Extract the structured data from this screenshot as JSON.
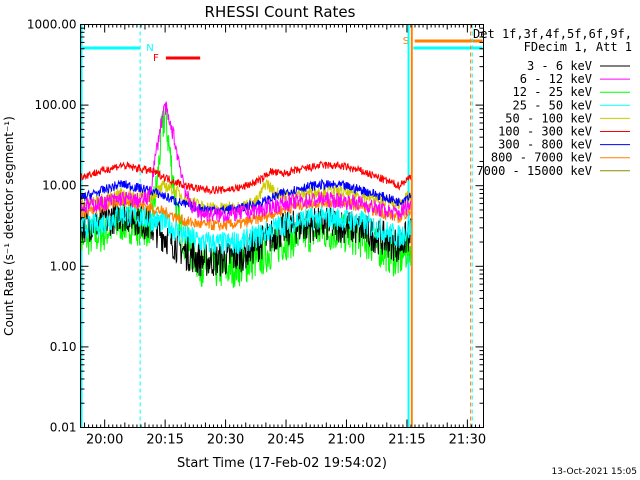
{
  "chart_data": {
    "type": "line",
    "title": "RHESSI Count Rates",
    "xlabel": "Start Time (17-Feb-02 19:54:02)",
    "ylabel": "Count Rate (s⁻¹ detector segment⁻¹)",
    "x_tick_labels": [
      "20:00",
      "20:15",
      "20:30",
      "20:45",
      "21:00",
      "21:15",
      "21:30"
    ],
    "x_tick_minutes": [
      6,
      21,
      36,
      51,
      66,
      81,
      96
    ],
    "x_range_minutes": [
      0,
      100
    ],
    "y_scale": "log",
    "ylim": [
      0.01,
      1000
    ],
    "y_tick_labels": [
      "1000.00",
      "100.00",
      "10.00",
      "1.00",
      "0.10",
      "0.01"
    ],
    "y_tick_values": [
      1000,
      100,
      10,
      1,
      0.1,
      0.01
    ],
    "legend": {
      "header": [
        "Det 1f,3f,4f,5f,6f,9f,",
        "FDecim 1, Att 1"
      ],
      "placement": "right"
    },
    "series": [
      {
        "name": "3 - 6 keV",
        "color": "#000000",
        "points": [
          [
            0,
            3.2
          ],
          [
            5,
            3.5
          ],
          [
            10,
            4.5
          ],
          [
            14,
            4.0
          ],
          [
            18,
            3.0
          ],
          [
            22,
            2.2
          ],
          [
            26,
            1.5
          ],
          [
            30,
            1.2
          ],
          [
            35,
            1.2
          ],
          [
            40,
            1.4
          ],
          [
            45,
            2.0
          ],
          [
            50,
            2.8
          ],
          [
            55,
            3.2
          ],
          [
            60,
            3.3
          ],
          [
            65,
            3.2
          ],
          [
            70,
            2.8
          ],
          [
            75,
            2.2
          ],
          [
            79,
            1.8
          ],
          [
            82,
            2.5
          ]
        ]
      },
      {
        "name": "6 - 12 keV",
        "color": "#ff00ff",
        "points": [
          [
            0,
            5.5
          ],
          [
            5,
            6.0
          ],
          [
            10,
            7.0
          ],
          [
            14,
            6.5
          ],
          [
            17,
            7.0
          ],
          [
            19,
            30
          ],
          [
            20,
            60
          ],
          [
            21,
            100
          ],
          [
            22,
            60
          ],
          [
            23,
            45
          ],
          [
            24,
            25
          ],
          [
            25,
            15
          ],
          [
            26,
            9
          ],
          [
            27,
            6
          ],
          [
            30,
            4.5
          ],
          [
            35,
            4.3
          ],
          [
            40,
            4.6
          ],
          [
            45,
            5.0
          ],
          [
            50,
            6.0
          ],
          [
            55,
            6.5
          ],
          [
            60,
            6.8
          ],
          [
            65,
            6.5
          ],
          [
            70,
            6.0
          ],
          [
            75,
            5.0
          ],
          [
            79,
            4.5
          ],
          [
            82,
            6.0
          ]
        ]
      },
      {
        "name": "12 - 25 keV",
        "color": "#00ff00",
        "points": [
          [
            0,
            2.2
          ],
          [
            5,
            2.5
          ],
          [
            10,
            3.5
          ],
          [
            14,
            3.2
          ],
          [
            17,
            3.0
          ],
          [
            19,
            10
          ],
          [
            20,
            40
          ],
          [
            21,
            80
          ],
          [
            22,
            30
          ],
          [
            23,
            12
          ],
          [
            24,
            4
          ],
          [
            26,
            2
          ],
          [
            30,
            1.0
          ],
          [
            35,
            0.9
          ],
          [
            40,
            1.0
          ],
          [
            45,
            1.3
          ],
          [
            50,
            2.0
          ],
          [
            55,
            2.5
          ],
          [
            60,
            2.7
          ],
          [
            65,
            2.6
          ],
          [
            70,
            2.2
          ],
          [
            75,
            1.6
          ],
          [
            79,
            1.2
          ],
          [
            82,
            1.8
          ]
        ]
      },
      {
        "name": "25 - 50 keV",
        "color": "#00ffff",
        "points": [
          [
            0,
            3.0
          ],
          [
            5,
            3.3
          ],
          [
            10,
            4.5
          ],
          [
            14,
            4.2
          ],
          [
            17,
            3.8
          ],
          [
            21,
            3.5
          ],
          [
            25,
            2.5
          ],
          [
            30,
            2.0
          ],
          [
            35,
            1.9
          ],
          [
            40,
            2.0
          ],
          [
            45,
            2.5
          ],
          [
            50,
            3.3
          ],
          [
            55,
            3.8
          ],
          [
            60,
            4.0
          ],
          [
            65,
            3.9
          ],
          [
            70,
            3.5
          ],
          [
            75,
            2.8
          ],
          [
            79,
            2.3
          ],
          [
            82,
            3.0
          ]
        ]
      },
      {
        "name": "50 - 100 keV",
        "color": "#cccc00",
        "points": [
          [
            0,
            6.0
          ],
          [
            5,
            6.5
          ],
          [
            10,
            8.0
          ],
          [
            14,
            7.5
          ],
          [
            17,
            7.0
          ],
          [
            19,
            8.5
          ],
          [
            21,
            10
          ],
          [
            23,
            9
          ],
          [
            26,
            7
          ],
          [
            30,
            5.5
          ],
          [
            35,
            5.2
          ],
          [
            40,
            5.5
          ],
          [
            44,
            6.5
          ],
          [
            46,
            11
          ],
          [
            48,
            8.5
          ],
          [
            50,
            7.5
          ],
          [
            55,
            8.0
          ],
          [
            60,
            8.5
          ],
          [
            65,
            8.3
          ],
          [
            70,
            7.5
          ],
          [
            75,
            6.5
          ],
          [
            79,
            6.0
          ],
          [
            82,
            7.5
          ]
        ]
      },
      {
        "name": "100 - 300 keV",
        "color": "#ff0000",
        "points": [
          [
            0,
            13
          ],
          [
            5,
            15
          ],
          [
            10,
            18
          ],
          [
            14,
            16.5
          ],
          [
            18,
            15
          ],
          [
            22,
            12
          ],
          [
            26,
            10
          ],
          [
            30,
            9
          ],
          [
            35,
            8.8
          ],
          [
            40,
            9.5
          ],
          [
            45,
            12
          ],
          [
            47,
            15
          ],
          [
            50,
            14
          ],
          [
            55,
            16
          ],
          [
            60,
            18
          ],
          [
            65,
            17.5
          ],
          [
            70,
            15
          ],
          [
            75,
            12
          ],
          [
            79,
            10
          ],
          [
            82,
            13
          ]
        ]
      },
      {
        "name": "300 - 800 keV",
        "color": "#0000ff",
        "points": [
          [
            0,
            7.0
          ],
          [
            5,
            8.5
          ],
          [
            10,
            10.5
          ],
          [
            14,
            9.5
          ],
          [
            18,
            8.5
          ],
          [
            22,
            7.0
          ],
          [
            26,
            5.8
          ],
          [
            30,
            5.2
          ],
          [
            35,
            5.0
          ],
          [
            40,
            5.3
          ],
          [
            45,
            6.2
          ],
          [
            50,
            8.0
          ],
          [
            55,
            9.5
          ],
          [
            60,
            10.3
          ],
          [
            65,
            10.0
          ],
          [
            70,
            8.8
          ],
          [
            75,
            7.3
          ],
          [
            79,
            6.3
          ],
          [
            82,
            7.8
          ]
        ]
      },
      {
        "name": "800 - 7000 keV",
        "color": "#ff8000",
        "points": [
          [
            0,
            4.5
          ],
          [
            5,
            5.2
          ],
          [
            10,
            6.5
          ],
          [
            14,
            6.0
          ],
          [
            18,
            5.2
          ],
          [
            22,
            4.5
          ],
          [
            26,
            3.6
          ],
          [
            30,
            3.3
          ],
          [
            35,
            3.2
          ],
          [
            40,
            3.4
          ],
          [
            45,
            4.0
          ],
          [
            50,
            5.0
          ],
          [
            55,
            5.8
          ],
          [
            60,
            6.3
          ],
          [
            65,
            6.2
          ],
          [
            70,
            5.5
          ],
          [
            75,
            4.6
          ],
          [
            79,
            4.0
          ],
          [
            82,
            5.0
          ]
        ]
      },
      {
        "name": "7000 - 15000 keV",
        "color": "#8b8b00",
        "points": []
      }
    ],
    "annotations": [
      {
        "text": "N",
        "color": "#00ffff"
      },
      {
        "text": "F",
        "color": "#ff0000"
      },
      {
        "text": "S",
        "color": "#ff8000"
      }
    ],
    "timestamp": "13-Oct-2021 15:05"
  }
}
